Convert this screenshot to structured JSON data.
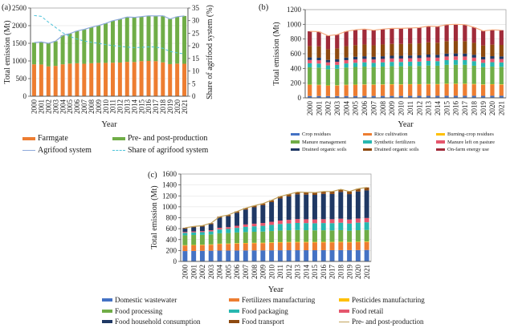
{
  "figure": {
    "panel_labels": {
      "a": "(a)",
      "b": "(b)",
      "c": "(c)"
    },
    "axis_titles": {
      "a_left": "Total emission (Mt)",
      "a_right": "Share of agrifood system (%)",
      "b_left": "Total emission (Mt)",
      "c_left": "Total emission (Mt)",
      "x": "Year"
    }
  },
  "chart_data": [
    {
      "id": "a",
      "type": "bar",
      "categories": [
        "2000",
        "2001",
        "2002",
        "2003",
        "2004",
        "2005",
        "2006",
        "2007",
        "2008",
        "2009",
        "2010",
        "2011",
        "2012",
        "2013",
        "2014",
        "2015",
        "2016",
        "2017",
        "2018",
        "2019",
        "2020",
        "2021"
      ],
      "xlabel": "Year",
      "ylabel": "Total emission (Mt)",
      "y2label": "Share of agrifood system (%)",
      "ylim": [
        0,
        2500
      ],
      "ystep": 500,
      "y2lim": [
        0,
        35
      ],
      "y2step": 5,
      "grid": true,
      "legend_position": "bottom",
      "series": [
        {
          "name": "Farmgate",
          "color": "#ED7D31",
          "values": [
            905,
            900,
            845,
            860,
            905,
            925,
            935,
            920,
            935,
            945,
            945,
            950,
            955,
            975,
            970,
            995,
            1000,
            995,
            960,
            910,
            925,
            920
          ]
        },
        {
          "name": "Pre- and post-production",
          "color": "#70AD47",
          "values": [
            615,
            640,
            655,
            700,
            820,
            850,
            915,
            975,
            1020,
            1060,
            1120,
            1190,
            1230,
            1270,
            1265,
            1260,
            1280,
            1280,
            1320,
            1280,
            1330,
            1355
          ]
        }
      ],
      "lines": [
        {
          "name": "Agrifood system",
          "color": "#8EAADB",
          "dash": false,
          "axis": "left",
          "values": [
            1520,
            1540,
            1500,
            1560,
            1725,
            1775,
            1850,
            1895,
            1955,
            2005,
            2065,
            2140,
            2185,
            2245,
            2235,
            2255,
            2280,
            2275,
            2280,
            2190,
            2255,
            2275
          ]
        },
        {
          "name": "Share of agrifood system",
          "color": "#4EC3D9",
          "dash": true,
          "axis": "right",
          "values": [
            32,
            31.7,
            29.4,
            27.3,
            25.2,
            23.7,
            22.7,
            21.9,
            21.4,
            21,
            20.5,
            20.1,
            19.8,
            19.5,
            19.3,
            19.4,
            19.6,
            19.5,
            19,
            17.8,
            17.2,
            16.8
          ]
        }
      ],
      "legend": [
        {
          "label": "Farmgate",
          "swatch": "bar",
          "color": "#ED7D31"
        },
        {
          "label": "Pre- and post-production",
          "swatch": "bar",
          "color": "#70AD47"
        },
        {
          "label": "Agrifood system",
          "swatch": "line",
          "color": "#8EAADB"
        },
        {
          "label": "Share of agrifood system",
          "swatch": "dash",
          "color": "#4EC3D9"
        }
      ]
    },
    {
      "id": "b",
      "type": "bar",
      "categories": [
        "2000",
        "2001",
        "2002",
        "2003",
        "2004",
        "2005",
        "2006",
        "2007",
        "2008",
        "2009",
        "2010",
        "2011",
        "2012",
        "2013",
        "2014",
        "2015",
        "2016",
        "2017",
        "2018",
        "2019",
        "2020",
        "2021"
      ],
      "xlabel": "Year",
      "ylabel": "Total emission (Mt)",
      "ylim": [
        0,
        1200
      ],
      "ystep": 200,
      "grid": true,
      "legend_position": "bottom",
      "series": [
        {
          "name": "Crop residues",
          "color": "#4472C4",
          "values": [
            25,
            25,
            24,
            24,
            25,
            25,
            26,
            26,
            26,
            26,
            26,
            27,
            27,
            27,
            27,
            28,
            28,
            28,
            28,
            27,
            28,
            28
          ]
        },
        {
          "name": "Rice cultivation",
          "color": "#ED7D31",
          "values": [
            150,
            148,
            140,
            142,
            148,
            150,
            152,
            150,
            152,
            153,
            152,
            153,
            153,
            155,
            154,
            158,
            158,
            158,
            155,
            150,
            152,
            150
          ]
        },
        {
          "name": "Burning-crop residues",
          "color": "#FFC000",
          "values": [
            5,
            5,
            5,
            5,
            5,
            5,
            5,
            5,
            5,
            6,
            6,
            6,
            6,
            6,
            6,
            6,
            6,
            6,
            6,
            6,
            6,
            6
          ]
        },
        {
          "name": "Manure management",
          "color": "#70AD47",
          "values": [
            235,
            233,
            220,
            224,
            235,
            240,
            242,
            238,
            242,
            245,
            245,
            246,
            247,
            252,
            250,
            257,
            258,
            257,
            248,
            235,
            239,
            238
          ]
        },
        {
          "name": "Synthetic fertilizers",
          "color": "#27B7B0",
          "values": [
            55,
            55,
            52,
            53,
            55,
            57,
            58,
            57,
            58,
            59,
            59,
            60,
            60,
            62,
            62,
            64,
            65,
            64,
            62,
            58,
            60,
            60
          ]
        },
        {
          "name": "Manure left on pasture",
          "color": "#E5566D",
          "values": [
            45,
            45,
            42,
            43,
            45,
            46,
            47,
            46,
            47,
            47,
            47,
            47,
            48,
            49,
            48,
            50,
            50,
            50,
            48,
            46,
            46,
            46
          ]
        },
        {
          "name": "Drained organic soils",
          "color": "#1F3864",
          "values": [
            35,
            35,
            33,
            34,
            35,
            36,
            36,
            36,
            36,
            37,
            37,
            37,
            37,
            38,
            38,
            39,
            39,
            39,
            38,
            36,
            36,
            36
          ]
        },
        {
          "name": "Drained organic soils",
          "color": "#8E4A10",
          "values": [
            155,
            154,
            145,
            147,
            155,
            158,
            160,
            157,
            160,
            161,
            161,
            162,
            163,
            166,
            165,
            169,
            170,
            169,
            163,
            155,
            157,
            156
          ]
        },
        {
          "name": "On-farm energy use",
          "color": "#A02B3A",
          "values": [
            200,
            200,
            184,
            188,
            202,
            208,
            209,
            205,
            209,
            211,
            212,
            212,
            214,
            220,
            220,
            224,
            226,
            224,
            212,
            197,
            201,
            200
          ]
        }
      ],
      "lines": [
        {
          "name": "total",
          "color": "#F4A97E",
          "dash": false,
          "axis": "left",
          "values": [
            905,
            900,
            845,
            860,
            905,
            925,
            935,
            920,
            935,
            945,
            945,
            950,
            955,
            975,
            970,
            995,
            1000,
            995,
            960,
            910,
            925,
            920
          ]
        }
      ],
      "legend": [
        {
          "label": "Crop residues",
          "swatch": "bar",
          "color": "#4472C4"
        },
        {
          "label": "Rice cultivation",
          "swatch": "bar",
          "color": "#ED7D31"
        },
        {
          "label": "Burning-crop residues",
          "swatch": "bar",
          "color": "#FFC000"
        },
        {
          "label": "Manure management",
          "swatch": "bar",
          "color": "#70AD47"
        },
        {
          "label": "Synthetic fertilizers",
          "swatch": "bar",
          "color": "#27B7B0"
        },
        {
          "label": "Manure left on pasture",
          "swatch": "bar",
          "color": "#E5566D"
        },
        {
          "label": "Drained organic soils",
          "swatch": "bar",
          "color": "#1F3864"
        },
        {
          "label": "Drained organic soils",
          "swatch": "bar",
          "color": "#8E4A10"
        },
        {
          "label": "On-farm energy use",
          "swatch": "bar",
          "color": "#A02B3A"
        }
      ]
    },
    {
      "id": "c",
      "type": "bar",
      "categories": [
        "2000",
        "2001",
        "2002",
        "2003",
        "2004",
        "2005",
        "2006",
        "2007",
        "2008",
        "2009",
        "2010",
        "2011",
        "2012",
        "2013",
        "2014",
        "2015",
        "2016",
        "2017",
        "2018",
        "2019",
        "2020",
        "2021"
      ],
      "xlabel": "Year",
      "ylabel": "Total emission (Mt)",
      "ylim": [
        0,
        1600
      ],
      "ystep": 200,
      "grid": true,
      "legend_position": "bottom",
      "series": [
        {
          "name": "Domestic wastewater",
          "color": "#4472C4",
          "values": [
            190,
            192,
            194,
            196,
            198,
            199,
            200,
            201,
            202,
            202,
            203,
            204,
            205,
            205,
            205,
            205,
            206,
            206,
            207,
            207,
            208,
            210
          ]
        },
        {
          "name": "Fertilizers manufacturing",
          "color": "#ED7D31",
          "values": [
            100,
            102,
            104,
            108,
            118,
            120,
            125,
            128,
            130,
            132,
            136,
            140,
            142,
            144,
            143,
            142,
            143,
            142,
            144,
            140,
            144,
            145
          ]
        },
        {
          "name": "Pesticides manufacturing",
          "color": "#FFC000",
          "values": [
            8,
            8,
            8,
            8,
            9,
            9,
            9,
            9,
            9,
            9,
            10,
            10,
            10,
            10,
            10,
            10,
            10,
            10,
            10,
            10,
            10,
            10
          ]
        },
        {
          "name": "Food processing",
          "color": "#70AD47",
          "values": [
            180,
            182,
            180,
            182,
            190,
            192,
            196,
            200,
            202,
            204,
            208,
            212,
            214,
            216,
            214,
            212,
            212,
            210,
            212,
            206,
            210,
            212
          ]
        },
        {
          "name": "Food packaging",
          "color": "#27B7B0",
          "values": [
            45,
            48,
            50,
            55,
            70,
            75,
            85,
            95,
            100,
            105,
            112,
            120,
            125,
            130,
            130,
            130,
            132,
            133,
            136,
            132,
            138,
            140
          ]
        },
        {
          "name": "Food retail",
          "color": "#E5566D",
          "values": [
            17,
            18,
            20,
            23,
            30,
            33,
            38,
            44,
            48,
            52,
            57,
            62,
            66,
            70,
            70,
            70,
            71,
            72,
            74,
            72,
            76,
            78
          ]
        },
        {
          "name": "Food household consumption",
          "color": "#1F3864",
          "values": [
            60,
            74,
            82,
            110,
            185,
            200,
            238,
            272,
            300,
            325,
            360,
            405,
            428,
            453,
            451,
            449,
            462,
            461,
            489,
            465,
            494,
            505
          ]
        },
        {
          "name": "Food transport",
          "color": "#8E4A10",
          "values": [
            15,
            16,
            17,
            18,
            20,
            22,
            24,
            26,
            29,
            31,
            34,
            37,
            40,
            42,
            42,
            42,
            44,
            46,
            48,
            48,
            50,
            55
          ]
        }
      ],
      "lines": [
        {
          "name": "Pre- and post-production",
          "color": "#C2A25B",
          "dash": false,
          "axis": "left",
          "values": [
            615,
            640,
            655,
            700,
            820,
            850,
            915,
            975,
            1020,
            1060,
            1120,
            1190,
            1230,
            1270,
            1265,
            1260,
            1280,
            1280,
            1320,
            1280,
            1330,
            1355
          ]
        }
      ],
      "legend": [
        {
          "label": "Domestic wastewater",
          "swatch": "bar",
          "color": "#4472C4"
        },
        {
          "label": "Fertilizers manufacturing",
          "swatch": "bar",
          "color": "#ED7D31"
        },
        {
          "label": "Pesticides manufacturing",
          "swatch": "bar",
          "color": "#FFC000"
        },
        {
          "label": "Food processing",
          "swatch": "bar",
          "color": "#70AD47"
        },
        {
          "label": "Food packaging",
          "swatch": "bar",
          "color": "#27B7B0"
        },
        {
          "label": "Food retail",
          "swatch": "bar",
          "color": "#E5566D"
        },
        {
          "label": "Food household consumption",
          "swatch": "bar",
          "color": "#1F3864"
        },
        {
          "label": "Food transport",
          "swatch": "bar",
          "color": "#8E4A10"
        },
        {
          "label": "Pre- and post-production",
          "swatch": "line",
          "color": "#C2A25B"
        }
      ]
    }
  ]
}
